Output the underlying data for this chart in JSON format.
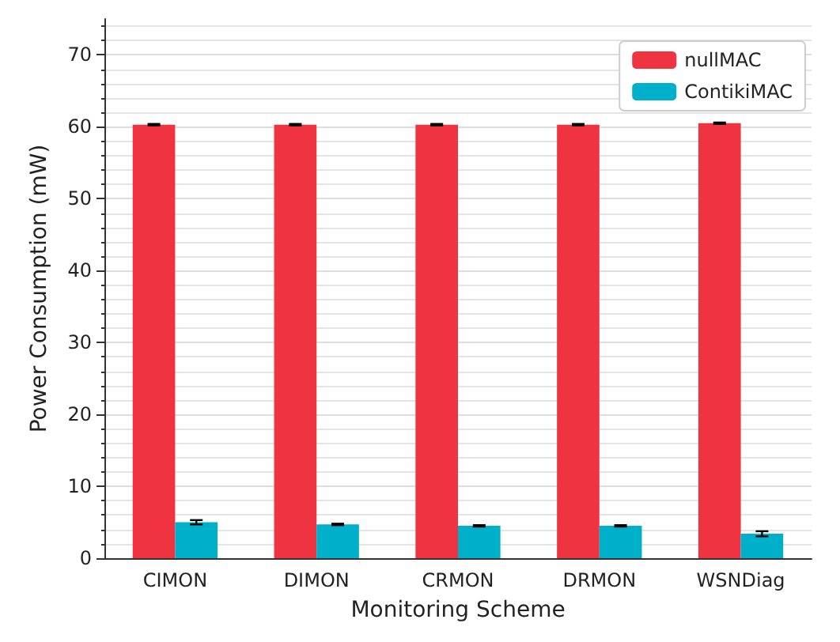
{
  "chart_data": {
    "type": "bar",
    "xlabel": "Monitoring Scheme",
    "ylabel": "Power Consumption (mW)",
    "categories": [
      "CIMON",
      "DIMON",
      "CRMON",
      "DRMON",
      "WSNDiag"
    ],
    "series": [
      {
        "name": "nullMAC",
        "color": "#ef3340",
        "values": [
          60.3,
          60.3,
          60.3,
          60.3,
          60.5
        ],
        "errors": [
          0.1,
          0.1,
          0.1,
          0.1,
          0.1
        ]
      },
      {
        "name": "ContikiMAC",
        "color": "#00afc9",
        "values": [
          5.0,
          4.7,
          4.5,
          4.5,
          3.4
        ],
        "errors": [
          0.3,
          0.1,
          0.1,
          0.1,
          0.35
        ]
      }
    ],
    "ylim": [
      0,
      75
    ],
    "yticks": [
      0,
      10,
      20,
      30,
      40,
      50,
      60,
      70
    ],
    "grid": true,
    "legend": "top right"
  }
}
